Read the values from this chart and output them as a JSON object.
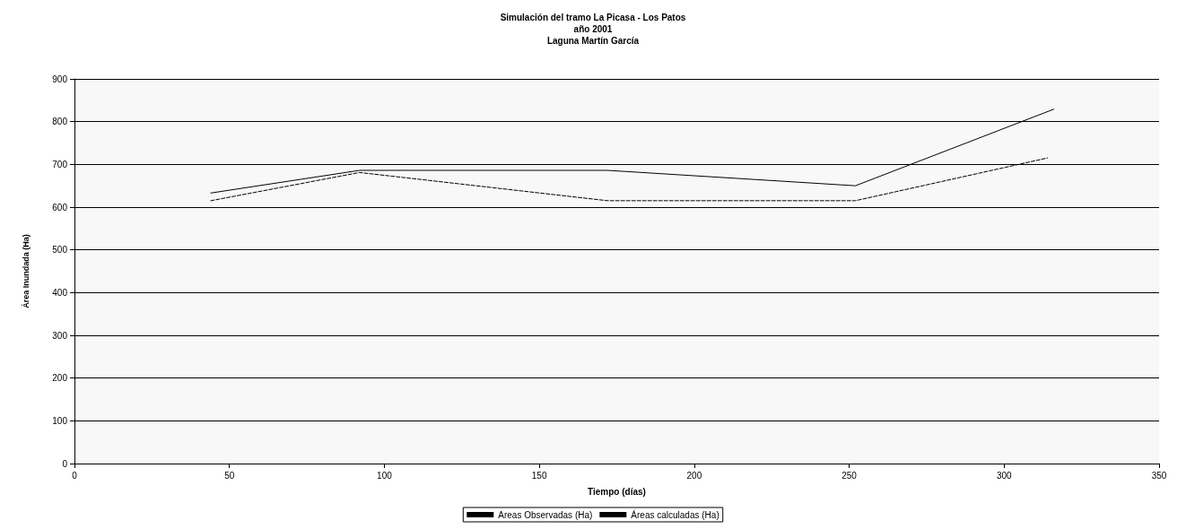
{
  "chart_data": {
    "type": "line",
    "title": "Simulación del tramo La Picasa - Los Patos\naño 2001\nLaguna Martín García",
    "xlabel": "Tiempo (días)",
    "ylabel": "Área Inundada (Ha)",
    "series": [
      {
        "name": "Areas Observadas (Ha)",
        "color": "#000000",
        "line_style": "solid",
        "x": [
          44,
          92,
          172,
          252,
          316
        ],
        "values": [
          633,
          686,
          686,
          650,
          829
        ]
      },
      {
        "name": "Áreas calculadas (Ha)",
        "color": "#000000",
        "line_style": "dashed",
        "x": [
          44,
          92,
          172,
          252,
          314
        ],
        "values": [
          615,
          681,
          615,
          615,
          715
        ]
      }
    ],
    "xlim": [
      0,
      350
    ],
    "xticks": [
      0,
      50,
      100,
      150,
      200,
      250,
      300,
      350
    ],
    "ylim": [
      0,
      900
    ],
    "yticks": [
      0,
      100,
      200,
      300,
      400,
      500,
      600,
      700,
      800,
      900
    ],
    "grid": "y",
    "legend": "bottom",
    "marker": "none"
  }
}
